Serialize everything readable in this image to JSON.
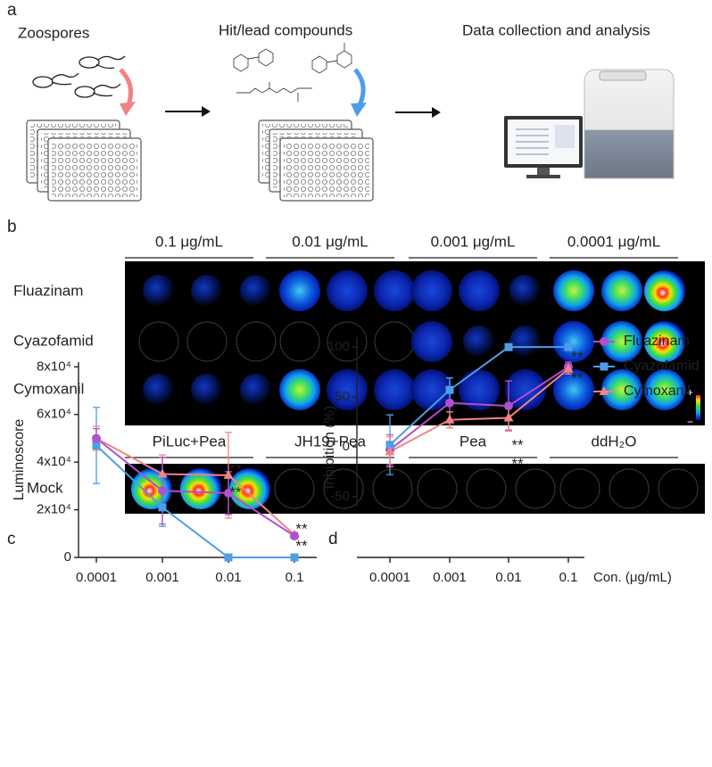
{
  "figure": {
    "panel_a": {
      "label": "a",
      "steps": [
        "Zoospores",
        "Hit/lead compounds",
        "Data collection and analysis"
      ]
    },
    "panel_b": {
      "label": "b",
      "concentrations": [
        "0.1 μg/mL",
        "0.01 μg/mL",
        "0.001 μg/mL",
        "0.0001 μg/mL"
      ],
      "rows": [
        "Fluazinam",
        "Cyazofamid",
        "Cymoxanil"
      ],
      "controls": [
        "PiLuc+Pea",
        "JH19+Pea",
        "Pea",
        "ddH₂O"
      ],
      "control_row": "Mock",
      "scale": [
        "+",
        "−"
      ]
    }
  },
  "chart_data": [
    {
      "type": "line",
      "label": "c",
      "ylabel": "Luminoscore",
      "categories": [
        "0.0001",
        "0.001",
        "0.01",
        "0.1"
      ],
      "series": [
        {
          "color": "#4f9de8",
          "marker": "square",
          "values": [
            47000,
            21000,
            0,
            0
          ],
          "errors": [
            16000,
            8000,
            0,
            0
          ]
        },
        {
          "color": "#f08484",
          "marker": "triangle",
          "values": [
            50000,
            35000,
            34500,
            9500
          ],
          "errors": [
            5000,
            8000,
            18000,
            1000
          ]
        },
        {
          "color": "#b04fcf",
          "marker": "circle",
          "values": [
            50000,
            28000,
            27000,
            9000
          ],
          "errors": [
            4000,
            14000,
            9000,
            1000
          ]
        }
      ],
      "ylim": [
        0,
        82000
      ],
      "yticks": [
        0,
        {
          "value": 20000,
          "label": "2x10⁴"
        },
        {
          "value": 40000,
          "label": "4x10⁴"
        },
        {
          "value": 60000,
          "label": "6x10⁴"
        },
        {
          "value": 80000,
          "label": "8x10⁴"
        }
      ],
      "annotations": [
        "**",
        "**",
        "**",
        "**"
      ]
    },
    {
      "type": "line",
      "label": "d",
      "ylabel": "Inhibition (%)",
      "xlabel": "Con. (μg/mL)",
      "categories": [
        "0.0001",
        "0.001",
        "0.01",
        "0.1"
      ],
      "series": [
        {
          "name": "Fluazinam",
          "color": "#b04fcf",
          "marker": "circle",
          "values": [
            -3,
            44,
            41,
            80
          ],
          "errors": [
            15,
            25,
            25,
            5
          ]
        },
        {
          "name": "Cyazofamid",
          "color": "#4f9de8",
          "marker": "square",
          "values": [
            2,
            57,
            100,
            100
          ],
          "errors": [
            30,
            12,
            0,
            0
          ]
        },
        {
          "name": "Cymoxanil",
          "color": "#f08484",
          "marker": "triangle",
          "values": [
            -5,
            27,
            29,
            78
          ],
          "errors": [
            15,
            8,
            12,
            5
          ]
        }
      ],
      "ylim": [
        -60,
        110
      ],
      "yticks": [
        -50,
        0,
        50,
        100
      ],
      "legend": "right",
      "annotations": [
        "**",
        "**",
        "**",
        "**"
      ]
    }
  ]
}
